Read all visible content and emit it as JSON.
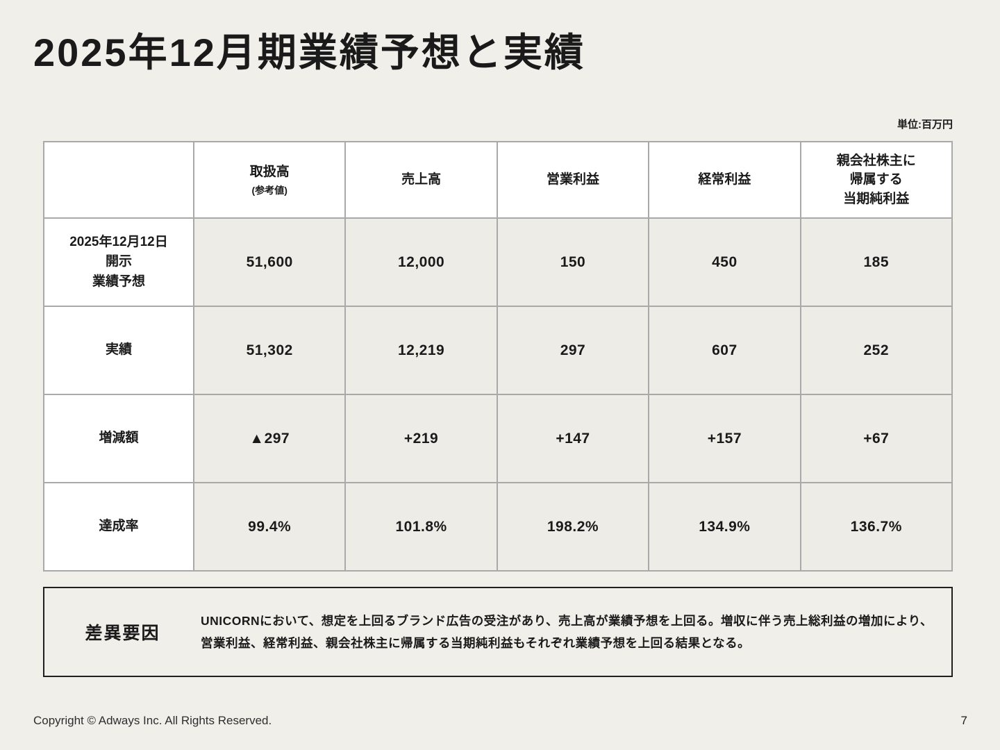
{
  "page": {
    "title": "2025年12月期業績予想と実績",
    "unit_label": "単位:百万円",
    "footer": {
      "copyright": "Copyright © Adways Inc. All Rights Reserved.",
      "page_number": "7"
    }
  },
  "colors": {
    "background": "#f0efe9",
    "header_cell_background": "#ffffff",
    "data_cell_background": "#edece6",
    "table_border": "#a9a9a9",
    "diff_box_border": "#1f1f1f",
    "text": "#1a1a1a"
  },
  "table": {
    "headers": [
      {
        "label": "",
        "sub": ""
      },
      {
        "label": "取扱高",
        "sub": "(参考値)"
      },
      {
        "label": "売上高",
        "sub": ""
      },
      {
        "label": "営業利益",
        "sub": ""
      },
      {
        "label": "経常利益",
        "sub": ""
      },
      {
        "label": "親会社株主に\n帰属する\n当期純利益",
        "sub": ""
      }
    ],
    "rows": [
      {
        "label": "2025年12月12日\n開示\n業績予想",
        "values": [
          "51,600",
          "12,000",
          "150",
          "450",
          "185"
        ]
      },
      {
        "label": "実績",
        "values": [
          "51,302",
          "12,219",
          "297",
          "607",
          "252"
        ]
      },
      {
        "label": "増減額",
        "values": [
          "▲297",
          "+219",
          "+147",
          "+157",
          "+67"
        ]
      },
      {
        "label": "達成率",
        "values": [
          "99.4%",
          "101.8%",
          "198.2%",
          "134.9%",
          "136.7%"
        ]
      }
    ]
  },
  "difference_box": {
    "label": "差異要因",
    "text": "UNICORNにおいて、想定を上回るブランド広告の受注があり、売上高が業績予想を上回る。増収に伴う売上総利益の増加により、営業利益、経常利益、親会社株主に帰属する当期純利益もそれぞれ業績予想を上回る結果となる。"
  }
}
